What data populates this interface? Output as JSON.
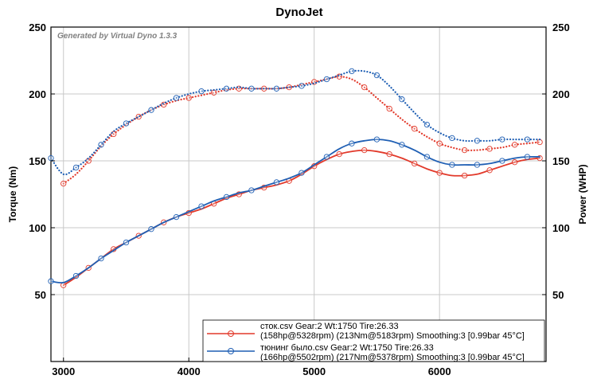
{
  "chart_data": {
    "type": "line",
    "title": "DynoJet",
    "watermark": "Generated by Virtual Dyno 1.3.3",
    "xlabel": "",
    "ylabel": "Torque (Nm)",
    "y2label": "Power (WHP)",
    "xlim": [
      2900,
      6850
    ],
    "ylim": [
      0,
      250
    ],
    "y2lim": [
      0,
      250
    ],
    "x_ticks": [
      3000,
      4000,
      5000,
      6000
    ],
    "y_ticks": [
      50,
      100,
      150,
      200,
      250
    ],
    "y2_ticks": [
      50,
      100,
      150,
      200,
      250
    ],
    "grid": true,
    "legend_position": "bottom-right",
    "legend": [
      {
        "line1": "сток.csv Gear:2 Wt:1750 Tire:26.33",
        "line2": "(158hp@5328rpm) (213Nm@5183rpm) Smoothing:3 [0.99bar 45°C]",
        "color": "#e2392a"
      },
      {
        "line1": "тюнинг было.csv Gear:2 Wt:1750 Tire:26.33",
        "line2": "(166hp@5502rpm) (217Nm@5378rpm) Smoothing:3 [0.99bar 45°C]",
        "color": "#1f5fb4"
      }
    ],
    "series": [
      {
        "name": "сток.csv",
        "measure": "power",
        "color": "#e2392a",
        "style": "solid",
        "x": [
          3000,
          3100,
          3200,
          3300,
          3400,
          3500,
          3600,
          3700,
          3800,
          3900,
          4000,
          4100,
          4200,
          4300,
          4400,
          4500,
          4600,
          4700,
          4800,
          4900,
          5000,
          5100,
          5200,
          5300,
          5400,
          5500,
          5600,
          5700,
          5800,
          5900,
          6000,
          6100,
          6200,
          6300,
          6400,
          6500,
          6600,
          6700,
          6800
        ],
        "values": [
          57,
          63,
          70,
          77,
          84,
          89,
          94,
          99,
          104,
          108,
          111,
          114,
          118,
          122,
          125,
          128,
          130,
          132,
          135,
          140,
          146,
          151,
          155,
          157,
          158,
          157,
          155,
          152,
          148,
          144,
          141,
          139,
          139,
          140,
          143,
          146,
          149,
          151,
          152
        ]
      },
      {
        "name": "тюнинг было.csv",
        "measure": "power",
        "color": "#1f5fb4",
        "style": "solid",
        "x": [
          2900,
          3000,
          3100,
          3200,
          3300,
          3400,
          3500,
          3600,
          3700,
          3800,
          3900,
          4000,
          4100,
          4200,
          4300,
          4400,
          4500,
          4600,
          4700,
          4800,
          4900,
          5000,
          5100,
          5200,
          5300,
          5400,
          5500,
          5600,
          5700,
          5800,
          5900,
          6000,
          6100,
          6200,
          6300,
          6400,
          6500,
          6600,
          6700,
          6800
        ],
        "values": [
          60,
          59,
          64,
          70,
          77,
          83,
          89,
          94,
          99,
          104,
          108,
          112,
          116,
          120,
          123,
          126,
          128,
          131,
          134,
          137,
          141,
          147,
          153,
          159,
          163,
          165,
          166,
          165,
          162,
          158,
          153,
          149,
          147,
          147,
          147,
          148,
          150,
          152,
          153,
          153
        ]
      },
      {
        "name": "сток.csv",
        "measure": "torque",
        "color": "#e2392a",
        "style": "dotted",
        "x": [
          3000,
          3100,
          3200,
          3300,
          3400,
          3500,
          3600,
          3700,
          3800,
          3900,
          4000,
          4100,
          4200,
          4300,
          4400,
          4500,
          4600,
          4700,
          4800,
          4900,
          5000,
          5100,
          5200,
          5300,
          5400,
          5500,
          5600,
          5700,
          5800,
          5900,
          6000,
          6100,
          6200,
          6300,
          6400,
          6500,
          6600,
          6700,
          6800
        ],
        "values": [
          133,
          140,
          150,
          161,
          170,
          177,
          183,
          188,
          192,
          195,
          197,
          199,
          201,
          203,
          204,
          204,
          204,
          204,
          205,
          207,
          209,
          211,
          213,
          211,
          205,
          197,
          189,
          181,
          174,
          168,
          163,
          160,
          158,
          158,
          159,
          160,
          162,
          163,
          164
        ]
      },
      {
        "name": "тюнинг было.csv",
        "measure": "torque",
        "color": "#1f5fb4",
        "style": "dotted",
        "x": [
          2900,
          3000,
          3100,
          3200,
          3300,
          3400,
          3500,
          3600,
          3700,
          3800,
          3900,
          4000,
          4100,
          4200,
          4300,
          4400,
          4500,
          4600,
          4700,
          4800,
          4900,
          5000,
          5100,
          5200,
          5300,
          5400,
          5500,
          5600,
          5700,
          5800,
          5900,
          6000,
          6100,
          6200,
          6300,
          6400,
          6500,
          6600,
          6700,
          6800
        ],
        "values": [
          152,
          140,
          145,
          152,
          162,
          172,
          178,
          183,
          188,
          193,
          197,
          200,
          202,
          203,
          204,
          205,
          204,
          204,
          204,
          205,
          206,
          208,
          211,
          214,
          217,
          217,
          214,
          206,
          196,
          186,
          177,
          171,
          167,
          165,
          165,
          165,
          166,
          166,
          166,
          166
        ]
      }
    ]
  }
}
